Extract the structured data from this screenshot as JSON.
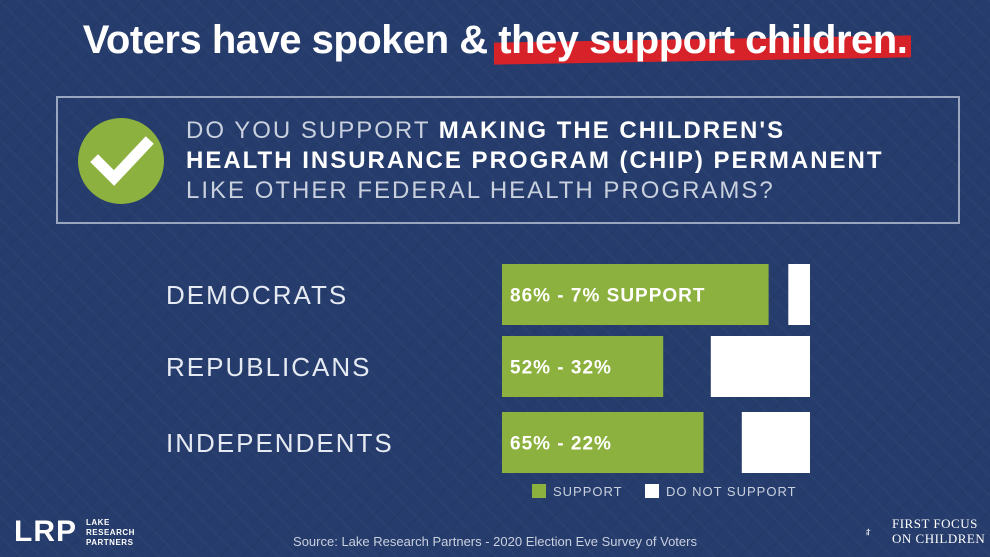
{
  "headline": {
    "part1": "Voters have spoken & ",
    "part2": "they support children."
  },
  "question": {
    "line1_light": "DO YOU SUPPORT ",
    "line1_bold": "MAKING THE CHILDREN'S",
    "line2_bold": "HEALTH INSURANCE PROGRAM (CHIP) PERMANENT",
    "line3_light": "LIKE OTHER FEDERAL HEALTH PROGRAMS?"
  },
  "chart_data": {
    "type": "bar",
    "orientation": "horizontal",
    "categories": [
      "DEMOCRATS",
      "REPUBLICANS",
      "INDEPENDENTS"
    ],
    "series": [
      {
        "name": "SUPPORT",
        "values": [
          86,
          52,
          65
        ],
        "color": "#8db13e"
      },
      {
        "name": "DO NOT SUPPORT",
        "values": [
          7,
          32,
          22
        ],
        "color": "#ffffff"
      }
    ],
    "data_labels": [
      "86% - 7% SUPPORT",
      "52% - 32%",
      "65% - 22%"
    ],
    "xlim": [
      0,
      100
    ],
    "legend": [
      "SUPPORT",
      "DO NOT SUPPORT"
    ],
    "legend_position": "bottom"
  },
  "source": "Source: Lake Research Partners - 2020 Election Eve Survey of Voters",
  "logos": {
    "lrp": "LRP",
    "lrp_sub": [
      "LAKE",
      "RESEARCH",
      "PARTNERS"
    ],
    "first_focus": [
      "FIRST FOCUS",
      "ON CHILDREN"
    ]
  }
}
